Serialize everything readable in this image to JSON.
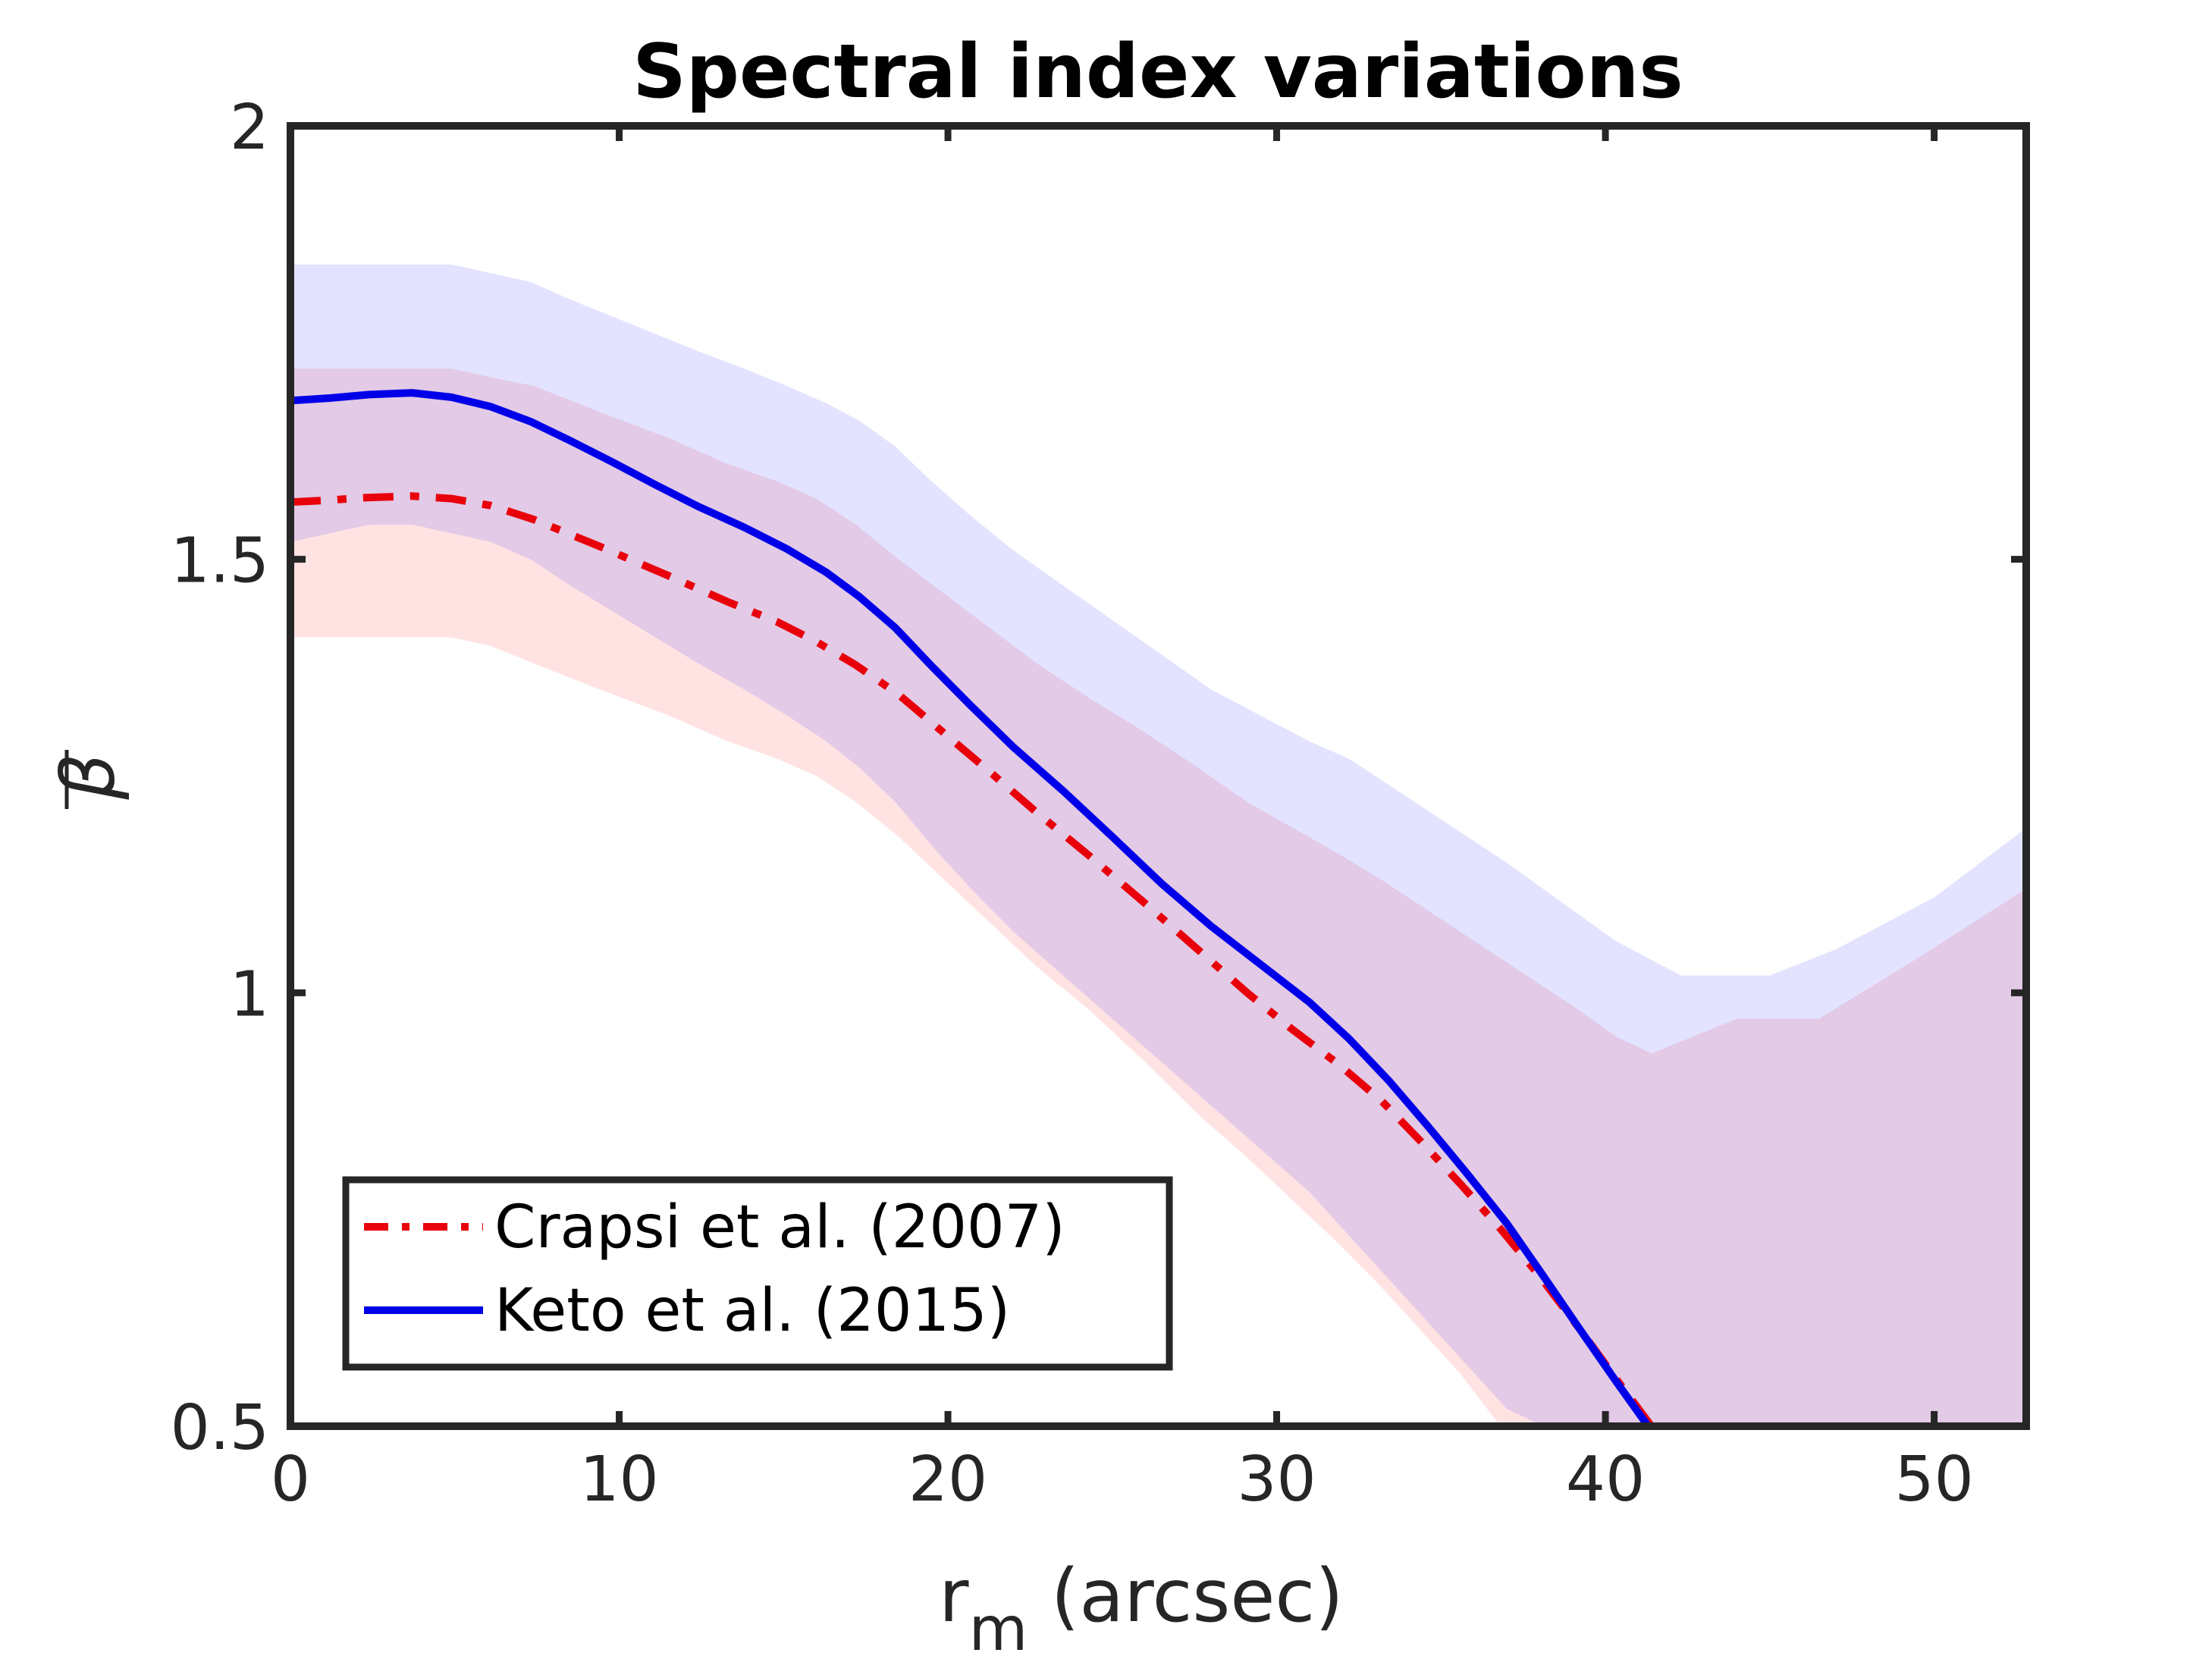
{
  "chart_data": {
    "type": "line",
    "title": "Spectral index variations",
    "xlabel": "r",
    "xlabel_sub": "m",
    "xlabel_suffix": " (arcsec)",
    "ylabel": "β",
    "xlim": [
      0,
      52.8
    ],
    "ylim": [
      0.5,
      2.0
    ],
    "xticks": [
      0,
      10,
      20,
      30,
      40,
      50
    ],
    "yticks": [
      0.5,
      1,
      1.5,
      2
    ],
    "xtick_labels": [
      "0",
      "10",
      "20",
      "30",
      "40",
      "50"
    ],
    "ytick_labels": [
      "0.5",
      "1",
      "1.5",
      "2"
    ],
    "legend_position": "bottom-left",
    "series": [
      {
        "name": "Crapsi et al. (2007)",
        "color": "#e8000b",
        "band_color": "#ff0000",
        "style": "dash-dot",
        "x": [
          0,
          1.1,
          2.2,
          3.7,
          4.9,
          6.1,
          7.4,
          9.4,
          11.5,
          13.3,
          14.8,
          16.0,
          17.2,
          18.5,
          19.9,
          21.3,
          22.7,
          24.3,
          26.0,
          27.6,
          29.1,
          30.5,
          31.9,
          33.2,
          34.4,
          35.6,
          36.8,
          38.0,
          39.2,
          40.3,
          41.4
        ],
        "y": [
          1.566,
          1.568,
          1.571,
          1.573,
          1.57,
          1.562,
          1.546,
          1.515,
          1.481,
          1.451,
          1.428,
          1.405,
          1.378,
          1.344,
          1.299,
          1.254,
          1.208,
          1.158,
          1.103,
          1.05,
          1.0,
          0.957,
          0.917,
          0.875,
          0.828,
          0.779,
          0.728,
          0.673,
          0.613,
          0.556,
          0.5
        ],
        "upper": [
          1.72,
          1.72,
          1.72,
          1.72,
          1.72,
          1.71,
          1.7,
          1.67,
          1.64,
          1.61,
          1.59,
          1.57,
          1.54,
          1.5,
          1.46,
          1.42,
          1.38,
          1.34,
          1.3,
          1.26,
          1.22,
          1.19,
          1.16,
          1.13,
          1.1,
          1.07,
          1.04,
          1.01,
          0.98,
          0.95,
          0.93
        ],
        "lower": [
          1.41,
          1.41,
          1.41,
          1.41,
          1.41,
          1.4,
          1.38,
          1.35,
          1.32,
          1.29,
          1.27,
          1.25,
          1.22,
          1.18,
          1.13,
          1.08,
          1.03,
          0.98,
          0.92,
          0.86,
          0.81,
          0.76,
          0.71,
          0.66,
          0.61,
          0.56,
          0.5,
          0.5,
          0.5,
          0.5,
          0.5
        ]
      },
      {
        "name": "Keto et al. (2015)",
        "color": "#0000e8",
        "band_color": "#0000ff",
        "style": "solid",
        "x": [
          0,
          1.2,
          2.4,
          3.7,
          4.9,
          6.1,
          7.3,
          8.5,
          9.8,
          11.1,
          12.4,
          13.8,
          15.1,
          16.3,
          17.3,
          18.4,
          19.5,
          20.7,
          22.0,
          23.5,
          25.0,
          26.5,
          28.0,
          29.5,
          31.0,
          32.2,
          33.4,
          34.6,
          35.8,
          37.0,
          38.1,
          39.2,
          40.3,
          41.3,
          42.3,
          43.2
        ],
        "y": [
          1.683,
          1.686,
          1.69,
          1.692,
          1.687,
          1.676,
          1.659,
          1.637,
          1.612,
          1.586,
          1.561,
          1.537,
          1.512,
          1.485,
          1.457,
          1.421,
          1.377,
          1.331,
          1.283,
          1.233,
          1.18,
          1.126,
          1.077,
          1.033,
          0.989,
          0.947,
          0.899,
          0.846,
          0.791,
          0.734,
          0.674,
          0.613,
          0.553,
          0.5,
          0.5,
          0.5
        ],
        "upper": [
          1.84,
          1.84,
          1.84,
          1.84,
          1.84,
          1.83,
          1.82,
          1.8,
          1.78,
          1.76,
          1.74,
          1.72,
          1.7,
          1.68,
          1.66,
          1.63,
          1.59,
          1.55,
          1.51,
          1.47,
          1.43,
          1.39,
          1.35,
          1.32,
          1.29,
          1.27,
          1.24,
          1.21,
          1.18,
          1.15,
          1.12,
          1.09,
          1.06,
          1.04,
          1.02,
          1.02
        ],
        "lower": [
          1.52,
          1.53,
          1.54,
          1.54,
          1.53,
          1.52,
          1.5,
          1.47,
          1.44,
          1.41,
          1.38,
          1.35,
          1.32,
          1.29,
          1.26,
          1.22,
          1.17,
          1.12,
          1.07,
          1.02,
          0.97,
          0.92,
          0.87,
          0.82,
          0.77,
          0.72,
          0.67,
          0.62,
          0.57,
          0.52,
          0.5,
          0.5,
          0.5,
          0.5,
          0.5,
          0.5
        ]
      }
    ]
  }
}
